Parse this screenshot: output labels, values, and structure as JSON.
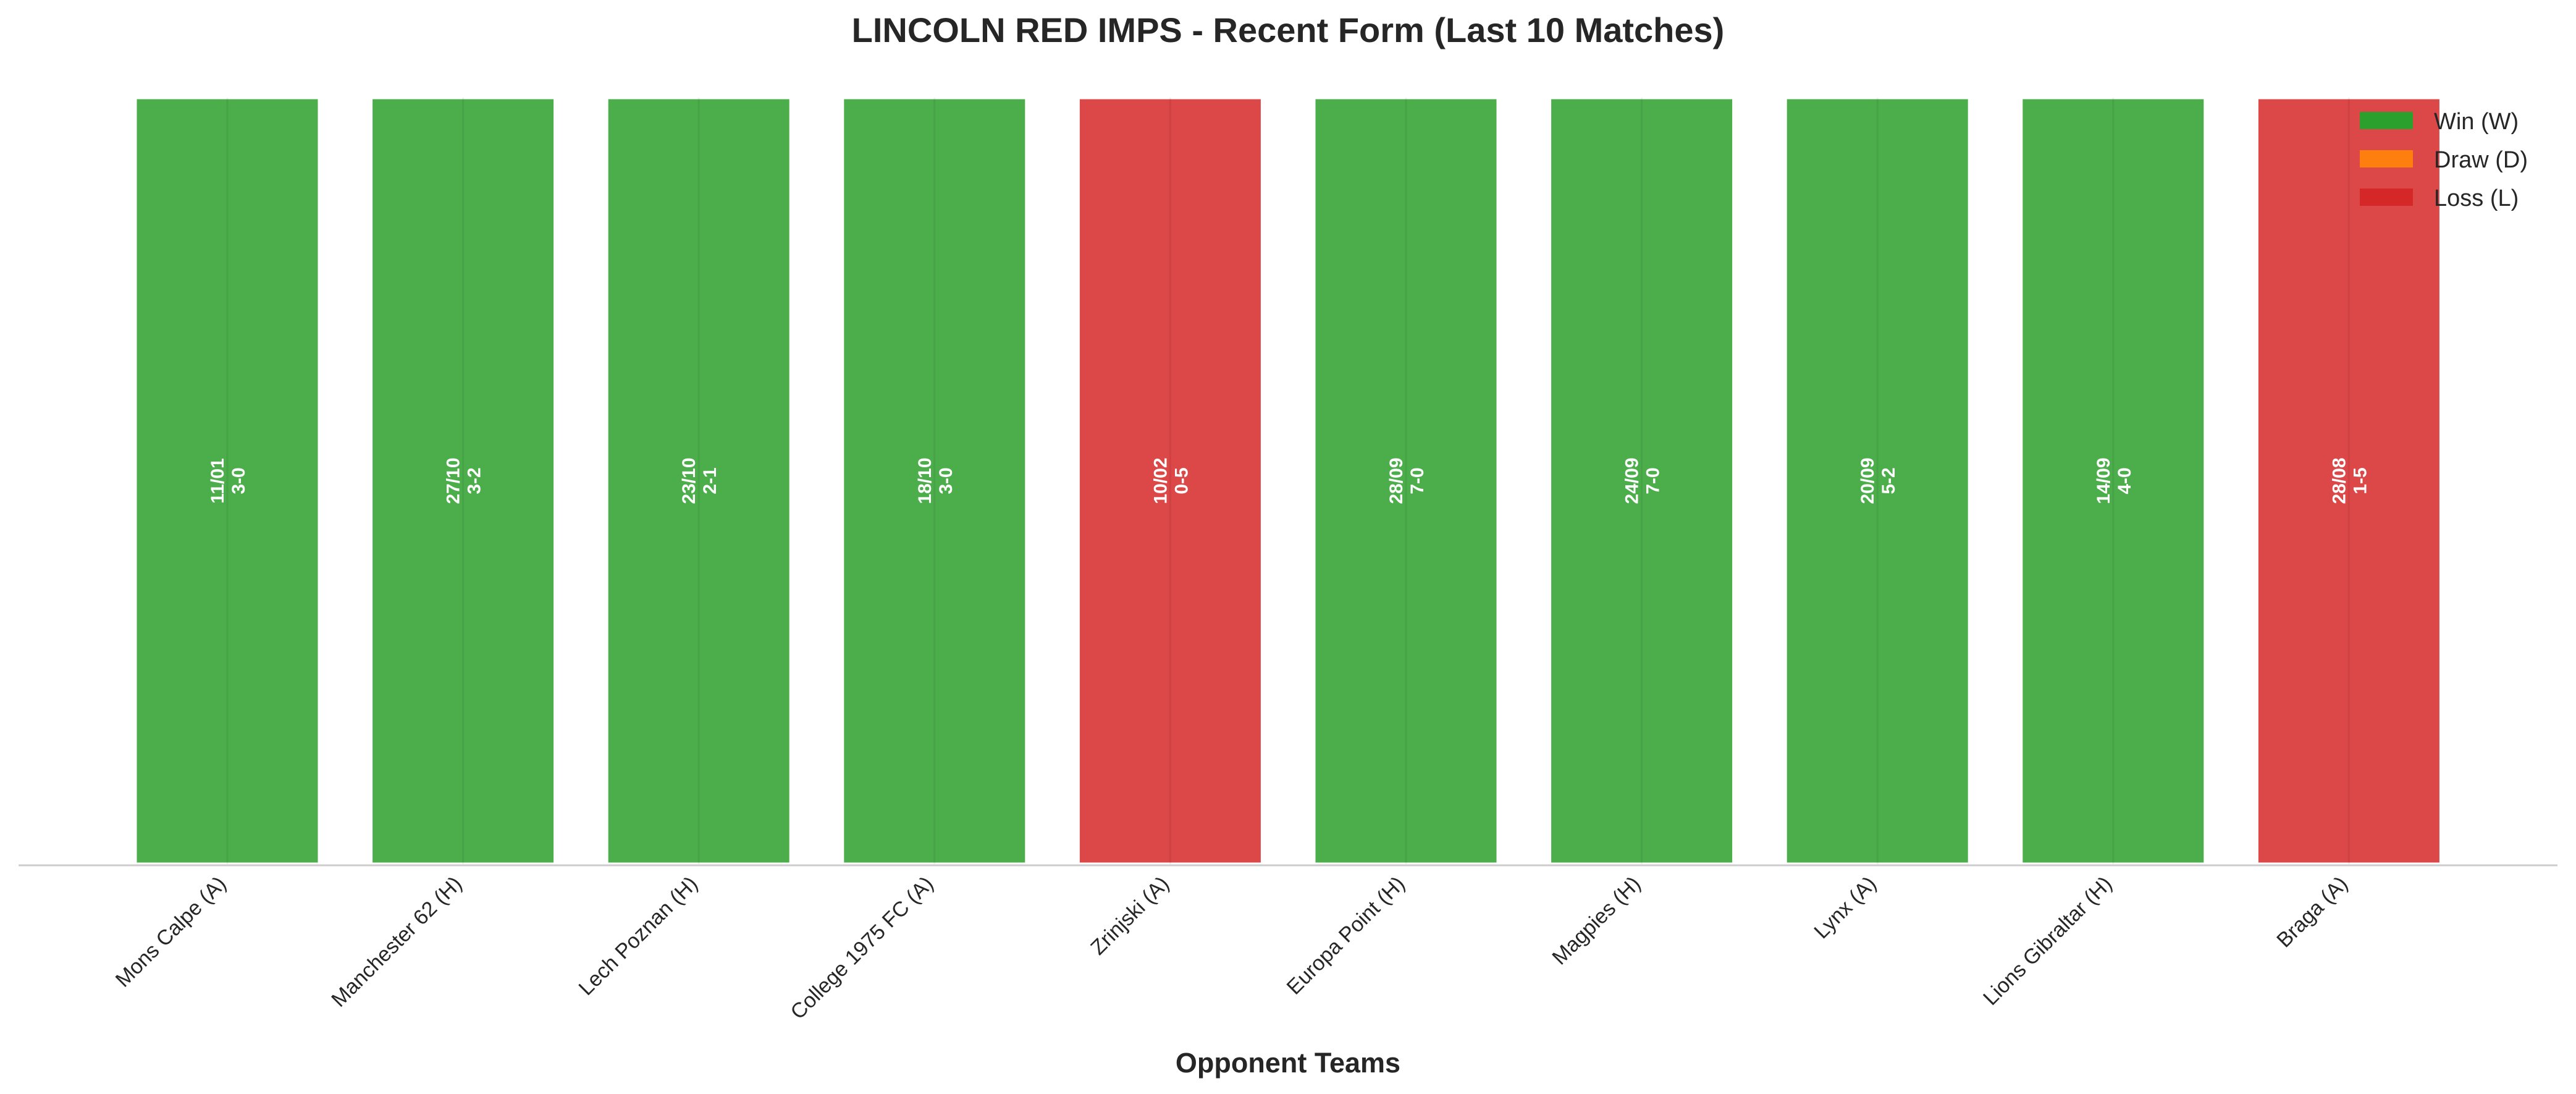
{
  "chart_data": {
    "type": "bar",
    "title": "LINCOLN RED IMPS - Recent Form (Last 10 Matches)",
    "xlabel": "Opponent Teams",
    "ylabel": "",
    "ylim": [
      0,
      1
    ],
    "grid": false,
    "legend_placement": "top-right",
    "legend": [
      {
        "key": "W",
        "label": "Win (W)",
        "color": "#2ca02c"
      },
      {
        "key": "D",
        "label": "Draw (D)",
        "color": "#ff7f0e"
      },
      {
        "key": "L",
        "label": "Loss (L)",
        "color": "#d62728"
      }
    ],
    "categories": [
      "Mons Calpe (A)",
      "Manchester 62 (H)",
      "Lech Poznan (H)",
      "College 1975 FC (A)",
      "Zrinjski (A)",
      "Europa Point (H)",
      "Magpies (H)",
      "Lynx (A)",
      "Lions Gibraltar (H)",
      "Braga (A)"
    ],
    "values": [
      1,
      1,
      1,
      1,
      1,
      1,
      1,
      1,
      1,
      1
    ],
    "results": [
      "W",
      "W",
      "W",
      "W",
      "L",
      "W",
      "W",
      "W",
      "W",
      "L"
    ],
    "dates": [
      "11/01",
      "27/10",
      "23/10",
      "18/10",
      "10/02",
      "28/09",
      "24/09",
      "20/09",
      "14/09",
      "28/08"
    ],
    "scores": [
      "3-0",
      "3-2",
      "2-1",
      "3-0",
      "0-5",
      "7-0",
      "7-0",
      "5-2",
      "4-0",
      "1-5"
    ]
  }
}
